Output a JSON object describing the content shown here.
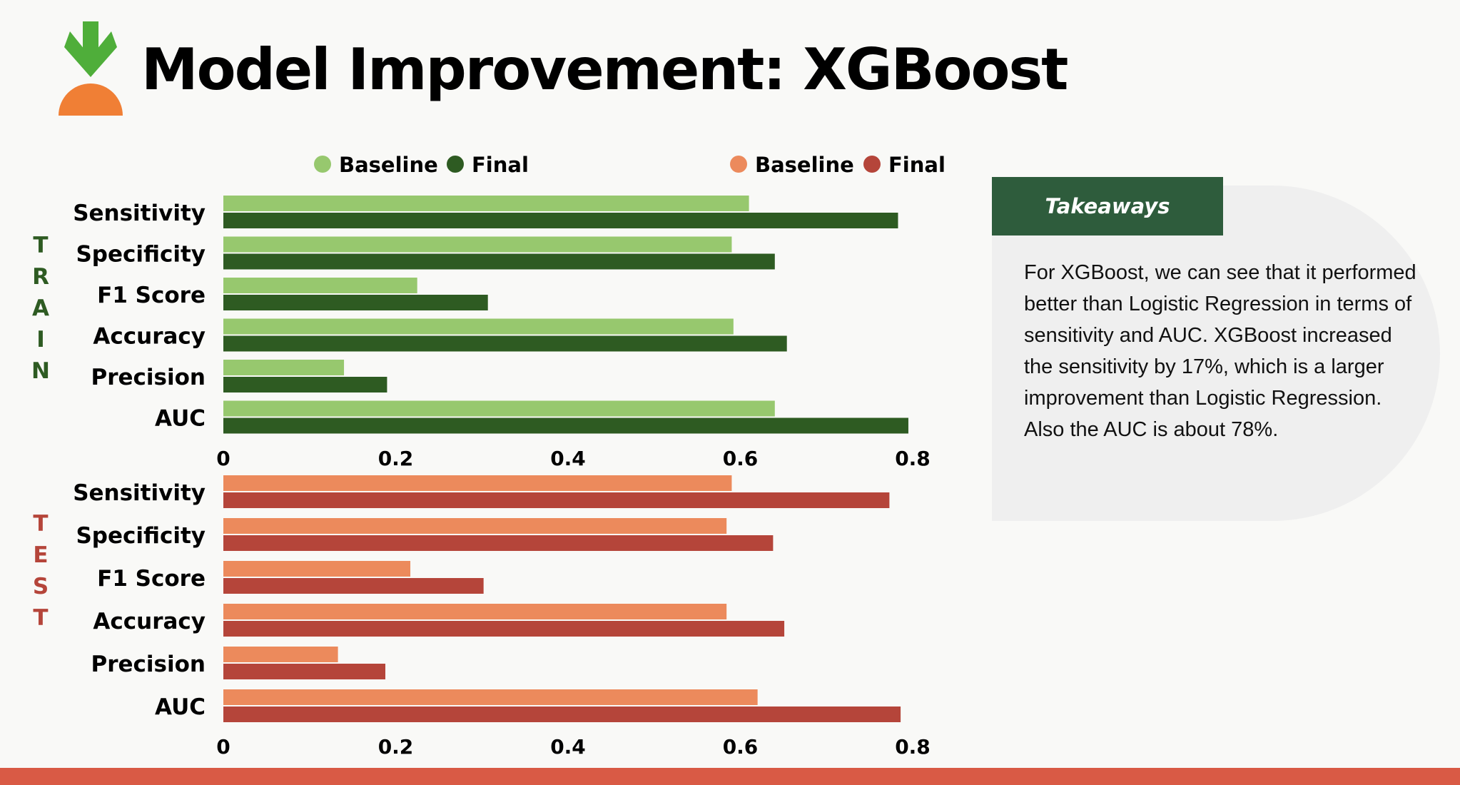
{
  "header": {
    "title": "Model Improvement: XGBoost"
  },
  "colors": {
    "train_baseline": "#97c86e",
    "train_final": "#2e5b22",
    "test_baseline": "#ec8a5c",
    "test_final": "#b5453a",
    "logo_green": "#4fae3a",
    "logo_orange": "#f07f35",
    "accent_bar": "#d95a45",
    "takeaways_tab": "#2e5c3c"
  },
  "takeaways": {
    "tab_label": "Takeaways",
    "text": "For XGBoost, we can see that it performed better than Logistic Regression in terms of sensitivity and AUC. XGBoost increased the sensitivity by 17%, which is a larger improvement than Logistic Regression. Also the AUC is about 78%."
  },
  "chart_data": [
    {
      "type": "bar",
      "orientation": "horizontal",
      "side_label": "TRAIN",
      "categories": [
        "Sensitivity",
        "Specificity",
        "F1 Score",
        "Accuracy",
        "Precision",
        "AUC"
      ],
      "series": [
        {
          "name": "Baseline",
          "values": [
            0.61,
            0.59,
            0.225,
            0.592,
            0.14,
            0.64
          ]
        },
        {
          "name": "Final",
          "values": [
            0.783,
            0.64,
            0.307,
            0.654,
            0.19,
            0.795
          ]
        }
      ],
      "xlim": [
        0,
        0.8
      ],
      "xticks": [
        "0",
        "0.2",
        "0.4",
        "0.6",
        "0.8"
      ],
      "legend": "top-left"
    },
    {
      "type": "bar",
      "orientation": "horizontal",
      "side_label": "TEST",
      "categories": [
        "Sensitivity",
        "Specificity",
        "F1 Score",
        "Accuracy",
        "Precision",
        "AUC"
      ],
      "series": [
        {
          "name": "Baseline",
          "values": [
            0.59,
            0.584,
            0.217,
            0.584,
            0.133,
            0.62
          ]
        },
        {
          "name": "Final",
          "values": [
            0.773,
            0.638,
            0.302,
            0.651,
            0.188,
            0.786
          ]
        }
      ],
      "xlim": [
        0,
        0.8
      ],
      "xticks": [
        "0",
        "0.2",
        "0.4",
        "0.6",
        "0.8"
      ],
      "legend": "top-right"
    }
  ]
}
